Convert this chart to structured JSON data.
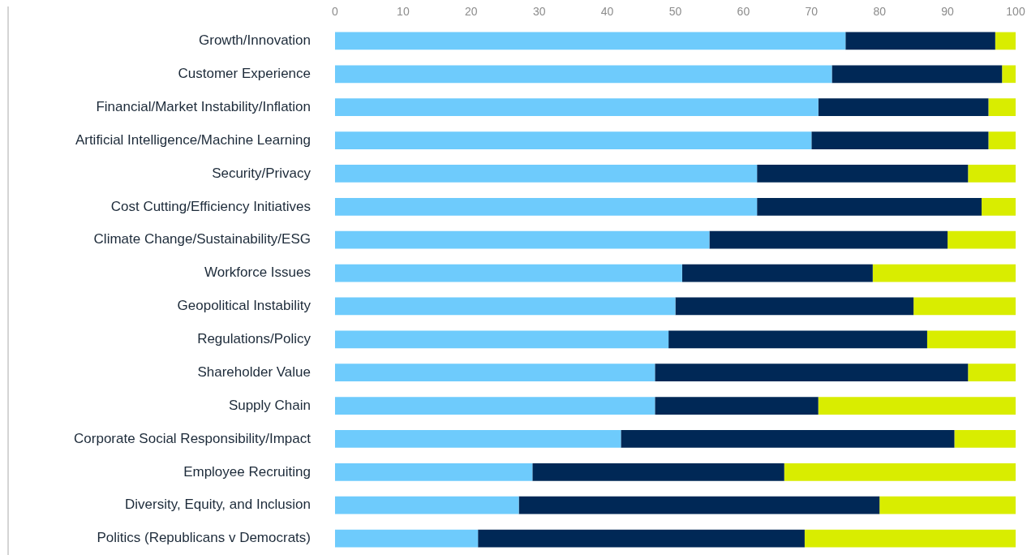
{
  "chart_data": {
    "type": "bar",
    "orientation": "horizontal",
    "stacked": true,
    "categories": [
      "Growth/Innovation",
      "Customer Experience",
      "Financial/Market Instability/Inflation",
      "Artificial Intelligence/Machine Learning",
      "Security/Privacy",
      "Cost Cutting/Efficiency Initiatives",
      "Climate Change/Sustainability/ESG",
      "Workforce Issues",
      "Geopolitical Instability",
      "Regulations/Policy",
      "Shareholder Value",
      "Supply Chain",
      "Corporate Social Responsibility/Impact",
      "Employee Recruiting",
      "Diversity, Equity, and Inclusion",
      "Politics (Republicans v Democrats)"
    ],
    "series": [
      {
        "color": "#6ecbfc",
        "values": [
          75,
          73,
          71,
          70,
          62,
          62,
          55,
          51,
          50,
          49,
          47,
          47,
          42,
          29,
          27,
          21
        ]
      },
      {
        "color": "#002856",
        "values": [
          22,
          25,
          25,
          26,
          31,
          33,
          35,
          28,
          35,
          38,
          46,
          24,
          49,
          37,
          53,
          48
        ]
      },
      {
        "color": "#d9ed00",
        "values": [
          3,
          2,
          4,
          4,
          7,
          5,
          10,
          21,
          15,
          13,
          7,
          29,
          9,
          34,
          20,
          31
        ]
      }
    ],
    "xlim": [
      0,
      100
    ],
    "xticks": [
      0,
      10,
      20,
      30,
      40,
      50,
      60,
      70,
      80,
      90,
      100
    ]
  }
}
